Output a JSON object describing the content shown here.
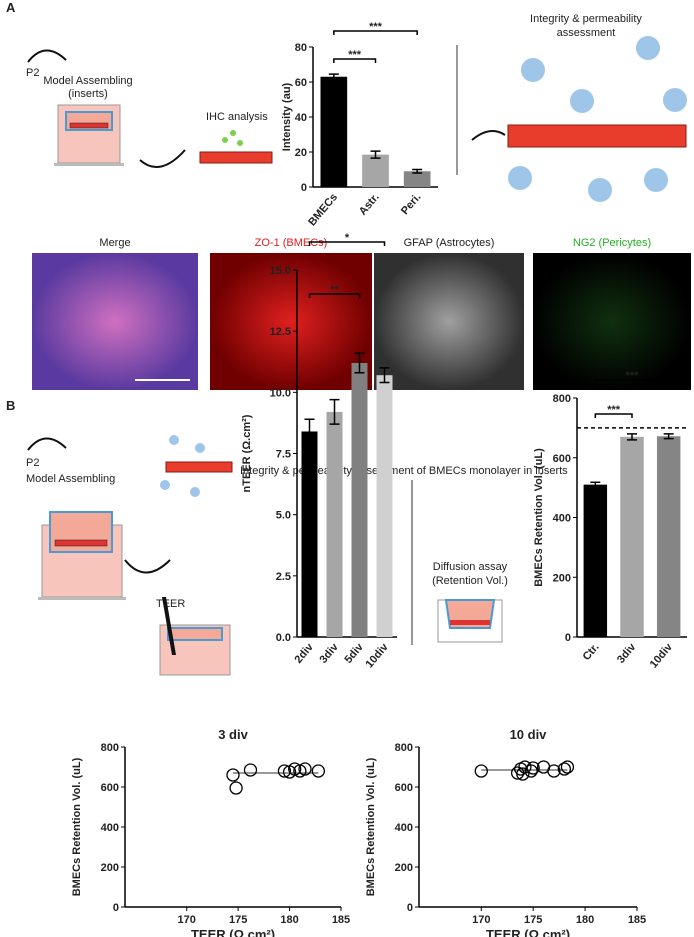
{
  "panels": {
    "A": {
      "label": "A",
      "p2": "P2",
      "assembling": [
        "Model Assembling",
        "(inserts)"
      ],
      "ihc": "IHC analysis",
      "integrity": [
        "Integrity & permeability",
        "assessment"
      ],
      "images": [
        "Merge",
        "ZO-1 (BMECs)",
        "GFAP (Astrocytes)",
        "NG2 (Pericytes)"
      ]
    },
    "B": {
      "label": "B",
      "p2": "P2",
      "assembling": "Model Assembling",
      "integrity": "Integrity & permeability assessment of BMECs monolayer in inserts",
      "teer": "TEER",
      "diffusion": [
        "Diffusion assay",
        "(Retention Vol.)"
      ]
    }
  },
  "chart_data": [
    {
      "type": "bar",
      "ylabel": "Intensity (au)",
      "categories": [
        "BMECs",
        "Astr.",
        "Peri."
      ],
      "values": [
        63,
        18.5,
        9
      ],
      "errors": [
        1.5,
        2,
        1
      ],
      "colors": [
        "#000000",
        "#a6a6a6",
        "#858585"
      ],
      "ylim": [
        0,
        80
      ],
      "yticks": [
        0,
        20,
        40,
        60,
        80
      ],
      "annotations": [
        {
          "text": "***",
          "from": "BMECs",
          "to": "Astr."
        },
        {
          "text": "***",
          "from": "BMECs",
          "to": "Peri."
        }
      ]
    },
    {
      "type": "bar",
      "ylabel": "nTEER (Ω.cm²)",
      "categories": [
        "2div",
        "3div",
        "5div",
        "10div"
      ],
      "values": [
        8.4,
        9.2,
        11.2,
        10.7
      ],
      "errors": [
        0.5,
        0.5,
        0.4,
        0.3
      ],
      "colors": [
        "#000000",
        "#a6a6a6",
        "#808080",
        "#d0d0d0"
      ],
      "ylim": [
        0,
        15
      ],
      "yticks": [
        {
          "value": 0,
          "label": "0.0"
        },
        {
          "value": 2.5,
          "label": "2.5"
        },
        {
          "value": 5,
          "label": "5.0"
        },
        {
          "value": 7.5,
          "label": "7.5"
        },
        {
          "value": 10,
          "label": "10.0"
        },
        {
          "value": 12.5,
          "label": "12.5"
        },
        {
          "value": 15,
          "label": "15.0"
        }
      ],
      "annotations": [
        {
          "text": "**",
          "from": "2div",
          "to": "5div"
        },
        {
          "text": "*",
          "from": "2div",
          "to": "10div"
        }
      ]
    },
    {
      "type": "bar",
      "ylabel": "BMECs Retention Vol. (uL)",
      "categories": [
        "Ctr.",
        "3div",
        "10div"
      ],
      "values": [
        510,
        670,
        672
      ],
      "errors": [
        8,
        10,
        8
      ],
      "colors": [
        "#000000",
        "#a6a6a6",
        "#858585"
      ],
      "ylim": [
        0,
        800
      ],
      "yticks": [
        0,
        200,
        400,
        600,
        800
      ],
      "reference_line": 700,
      "annotations": [
        {
          "text": "***",
          "from": "Ctr.",
          "to": "3div"
        },
        {
          "text": "***",
          "from": "Ctr.",
          "to": "10div"
        }
      ]
    },
    {
      "type": "scatter",
      "title": "3 div",
      "xlabel": "TEER (Ω.cm²)",
      "ylabel": "BMECs Retention Vol. (uL)",
      "x": [
        174.5,
        174.8,
        176.2,
        179.5,
        180,
        180.5,
        181,
        181.5,
        182.8
      ],
      "y": [
        660,
        595,
        685,
        680,
        675,
        690,
        680,
        690,
        680
      ],
      "mean": 670,
      "xlim": [
        164,
        185
      ],
      "xticks": [
        170,
        175,
        180,
        185
      ],
      "ylim": [
        0,
        800
      ],
      "yticks": [
        0,
        200,
        400,
        600,
        800
      ]
    },
    {
      "type": "scatter",
      "title": "10 div",
      "xlabel": "TEER (Ω.cm²)",
      "ylabel": "BMECs Retention Vol. (uL)",
      "x": [
        170,
        173.5,
        173.8,
        174,
        174.2,
        174.8,
        175,
        176,
        177,
        178,
        178.3
      ],
      "y": [
        680,
        670,
        690,
        665,
        700,
        680,
        695,
        700,
        680,
        690,
        700
      ],
      "mean": 685,
      "xlim": [
        164,
        185
      ],
      "xticks": [
        170,
        175,
        180,
        185
      ],
      "ylim": [
        0,
        800
      ],
      "yticks": [
        0,
        200,
        400,
        600,
        800
      ]
    }
  ]
}
